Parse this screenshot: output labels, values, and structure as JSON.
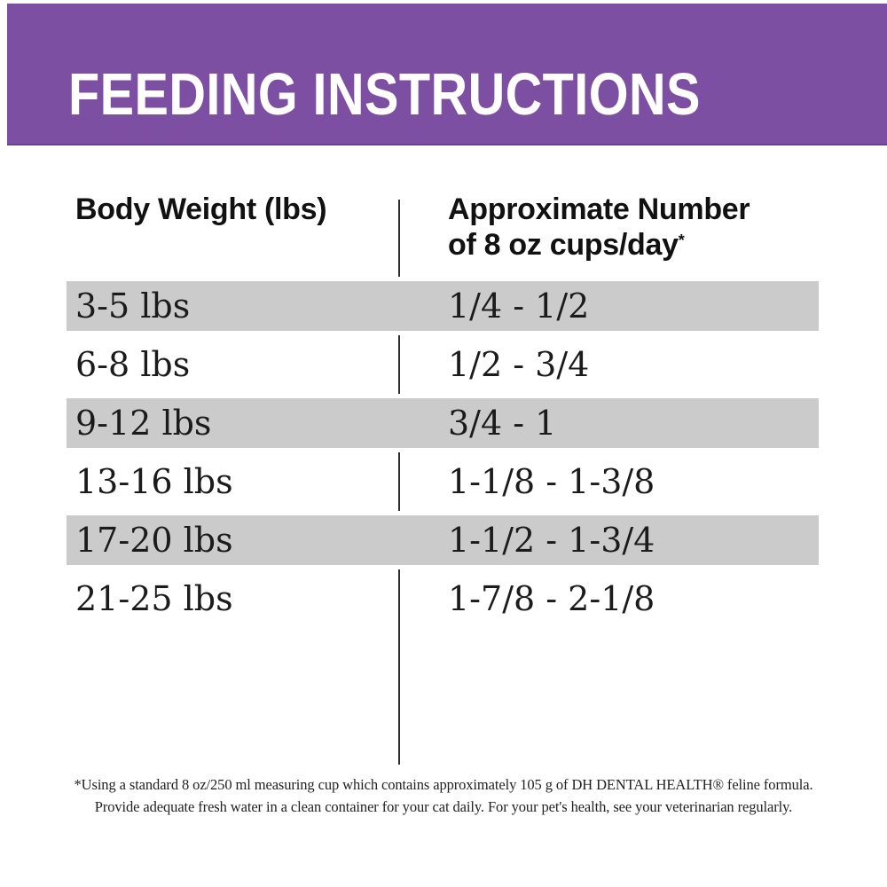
{
  "title": "FEEDING INSTRUCTIONS",
  "colors": {
    "banner_purple": "#7c4fa2",
    "shaded_row_gray": "#cbcbcb",
    "text_dark": "#111111",
    "divider_dark": "#2d2d2d"
  },
  "table": {
    "col1_header": "Body Weight (lbs)",
    "col2_header_line1": "Approximate Number",
    "col2_header_line2": "of 8 oz cups/day",
    "col2_header_mark": "*",
    "rows": [
      {
        "weight": "3-5 lbs",
        "cups": "1/4 - 1/2",
        "shaded": true
      },
      {
        "weight": "6-8 lbs",
        "cups": "1/2 - 3/4",
        "shaded": false
      },
      {
        "weight": "9-12 lbs",
        "cups": "3/4 - 1",
        "shaded": true
      },
      {
        "weight": "13-16 lbs",
        "cups": "1-1/8 - 1-3/8",
        "shaded": false
      },
      {
        "weight": "17-20 lbs",
        "cups": "1-1/2 - 1-3/4",
        "shaded": true
      },
      {
        "weight": "21-25 lbs",
        "cups": "1-7/8 - 2-1/8",
        "shaded": false
      }
    ]
  },
  "footnote": {
    "line1": "*Using a standard 8 oz/250 ml measuring cup which contains approximately 105 g of DH DENTAL HEALTH® feline formula.",
    "line2": "Provide adequate fresh water in a clean container for your cat daily. For your pet's health, see your veterinarian regularly."
  }
}
